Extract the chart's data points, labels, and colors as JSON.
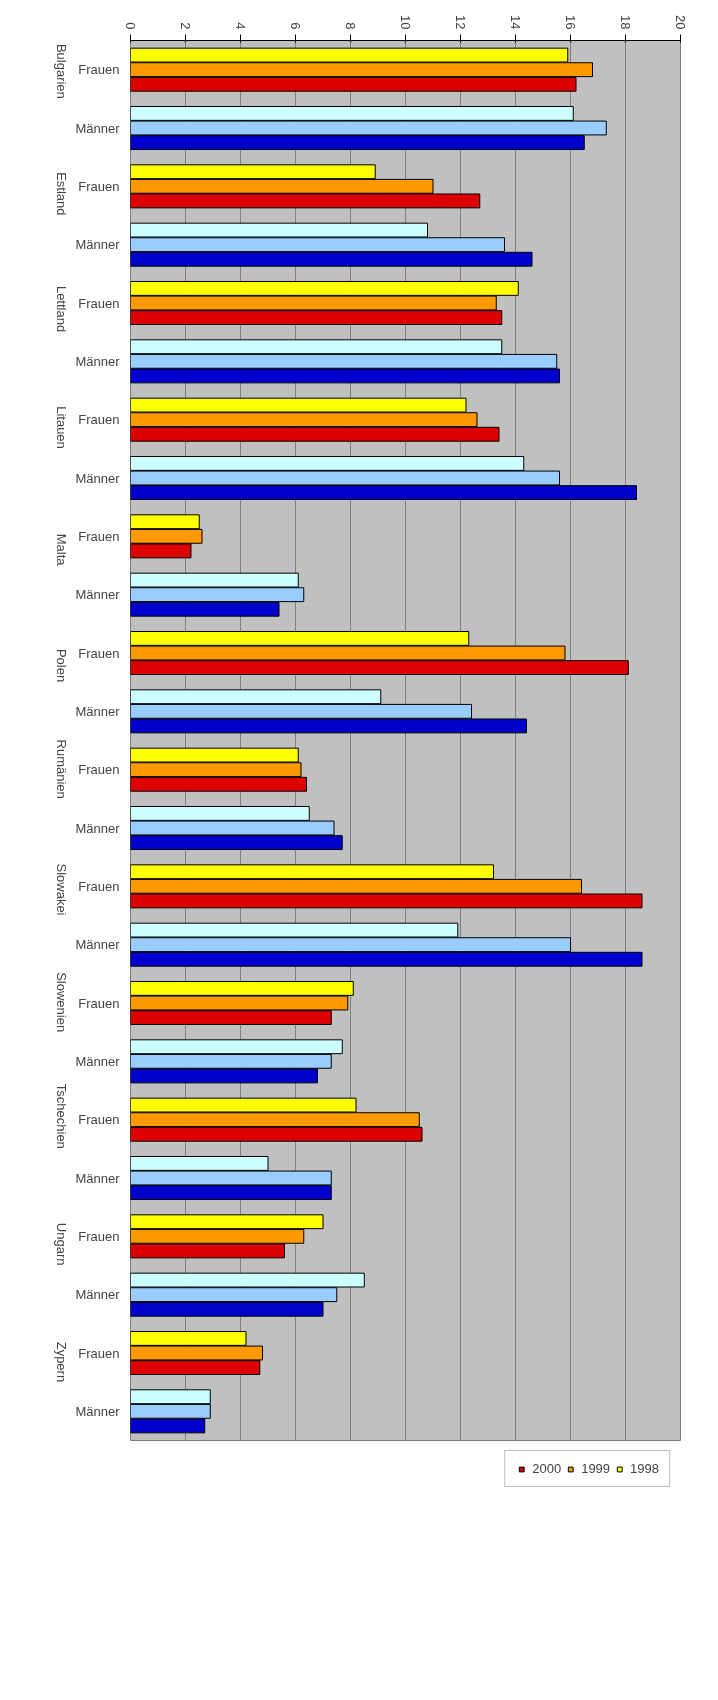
{
  "chart_data": {
    "type": "bar",
    "orientation": "horizontal",
    "categories": [
      "Frauen",
      "Männer",
      "Frauen",
      "Männer",
      "Frauen",
      "Männer",
      "Frauen",
      "Männer",
      "Frauen",
      "Männer",
      "Frauen",
      "Männer",
      "Frauen",
      "Männer",
      "Frauen",
      "Männer",
      "Frauen",
      "Männer",
      "Frauen",
      "Männer",
      "Frauen",
      "Männer",
      "Frauen",
      "Männer"
    ],
    "annotations": [
      "Bulgarien",
      "Estland",
      "Lettland",
      "Litauen",
      "Malta",
      "Polen",
      "Rumänien",
      "Slowakei",
      "Slowenien",
      "Tschechien",
      "Ungarn",
      "Zypern"
    ],
    "series": [
      {
        "name": "1998",
        "color": "#ffff00",
        "colors": [
          "#ffff00",
          "#ccffff",
          "#ffff00",
          "#ccffff",
          "#ffff00",
          "#ccffff",
          "#ffff00",
          "#ccffff",
          "#ffff00",
          "#ccffff",
          "#ffff00",
          "#ccffff",
          "#ffff00",
          "#ccffff",
          "#ffff00",
          "#ccffff",
          "#ffff00",
          "#ccffff",
          "#ffff00",
          "#ccffff",
          "#ffff00",
          "#ccffff",
          "#ffff00",
          "#ccffff"
        ],
        "values": [
          15.9,
          16.1,
          8.9,
          10.8,
          14.1,
          13.5,
          12.2,
          14.3,
          2.5,
          6.1,
          12.3,
          9.1,
          6.1,
          6.5,
          13.2,
          11.9,
          8.1,
          7.7,
          8.2,
          5.0,
          7.0,
          8.5,
          4.2,
          2.9
        ]
      },
      {
        "name": "1999",
        "color": "#ff9900",
        "colors": [
          "#ff9900",
          "#99ccff",
          "#ff9900",
          "#99ccff",
          "#ff9900",
          "#99ccff",
          "#ff9900",
          "#99ccff",
          "#ff9900",
          "#99ccff",
          "#ff9900",
          "#99ccff",
          "#ff9900",
          "#99ccff",
          "#ff9900",
          "#99ccff",
          "#ff9900",
          "#99ccff",
          "#ff9900",
          "#99ccff",
          "#ff9900",
          "#99ccff",
          "#ff9900",
          "#99ccff"
        ],
        "values": [
          16.8,
          17.3,
          11.0,
          13.6,
          13.3,
          15.5,
          12.6,
          15.6,
          2.6,
          6.3,
          15.8,
          12.4,
          6.2,
          7.4,
          16.4,
          16.0,
          7.9,
          7.3,
          10.5,
          7.3,
          6.3,
          7.5,
          4.8,
          2.9
        ]
      },
      {
        "name": "2000",
        "color": "#dd0000",
        "colors": [
          "#dd0000",
          "#0000cc",
          "#dd0000",
          "#0000cc",
          "#dd0000",
          "#0000cc",
          "#dd0000",
          "#0000cc",
          "#dd0000",
          "#0000cc",
          "#dd0000",
          "#0000cc",
          "#dd0000",
          "#0000cc",
          "#dd0000",
          "#0000cc",
          "#dd0000",
          "#0000cc",
          "#dd0000",
          "#0000cc",
          "#dd0000",
          "#0000cc",
          "#dd0000",
          "#0000cc"
        ],
        "values": [
          16.2,
          16.5,
          12.7,
          14.6,
          13.5,
          15.6,
          13.4,
          18.4,
          2.2,
          5.4,
          18.1,
          14.4,
          6.4,
          7.7,
          18.6,
          18.6,
          7.3,
          6.8,
          10.6,
          7.3,
          5.6,
          7.0,
          4.7,
          2.7
        ]
      }
    ],
    "xlim": [
      0,
      20
    ],
    "xticks": [
      0,
      2,
      4,
      6,
      8,
      10,
      12,
      14,
      16,
      18,
      20
    ],
    "grid": "x",
    "legend": "bottom"
  }
}
